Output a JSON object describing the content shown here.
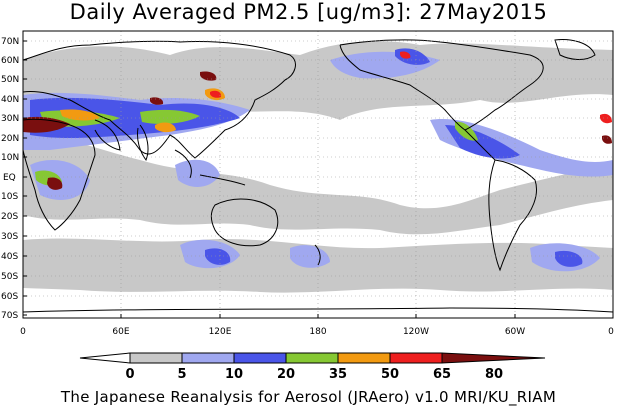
{
  "title": "Daily Averaged PM2.5 [ug/m3]: 27May2015",
  "footer": "The Japanese Reanalysis for Aerosol (JRAero) v1.0 MRI/KU_RIAM",
  "lat_labels": [
    "70N",
    "60N",
    "50N",
    "40N",
    "30N",
    "20N",
    "10N",
    "EQ",
    "10S",
    "20S",
    "30S",
    "40S",
    "50S",
    "60S",
    "70S"
  ],
  "lon_labels": [
    "0",
    "60E",
    "120E",
    "180",
    "120W",
    "60W",
    "0"
  ],
  "colorbar": {
    "levels": [
      "0",
      "5",
      "10",
      "20",
      "35",
      "50",
      "65",
      "80"
    ],
    "colors": [
      "#ffffff",
      "#c8c8c8",
      "#a0a8f0",
      "#4a55e8",
      "#86c833",
      "#f29a11",
      "#ee1f1f",
      "#7a0f0f"
    ]
  },
  "map_colors": {
    "land_line": "#000000",
    "grid": "#999999"
  }
}
